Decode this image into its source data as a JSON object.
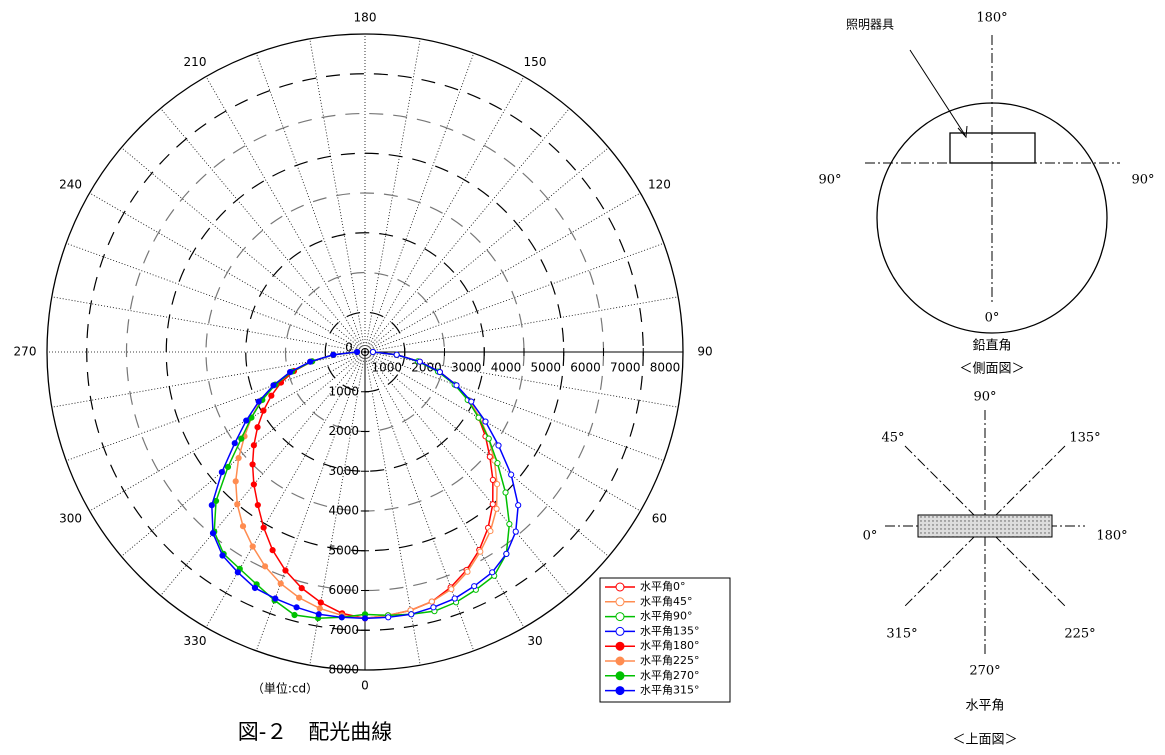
{
  "chart_data": {
    "type": "polar",
    "rlim": [
      0,
      8000
    ],
    "rticks": [
      0,
      1000,
      2000,
      3000,
      4000,
      5000,
      6000,
      7000,
      8000
    ],
    "angle_ticks": [
      0,
      30,
      60,
      90,
      120,
      150,
      180,
      210,
      240,
      270,
      300,
      330
    ],
    "unit_note": "（単位:cd）",
    "caption": "図-２　配光曲線",
    "series": [
      {
        "name": "水平角0°",
        "color": "#ff0000",
        "filled": false,
        "x": [
          0,
          5,
          10,
          15,
          20,
          25,
          30,
          35,
          40,
          45,
          50,
          55,
          60,
          65,
          70,
          75,
          80,
          85,
          90
        ],
        "values": [
          6700,
          6650,
          6600,
          6500,
          6300,
          6050,
          5750,
          5400,
          5000,
          4550,
          4100,
          3700,
          3300,
          2900,
          2450,
          1950,
          1400,
          800,
          200
        ]
      },
      {
        "name": "水平角45°",
        "color": "#ff8c50",
        "filled": false,
        "x": [
          0,
          5,
          10,
          15,
          20,
          25,
          30,
          35,
          40,
          45,
          50,
          55,
          60,
          65,
          70,
          75,
          80,
          85,
          90
        ],
        "values": [
          6700,
          6650,
          6600,
          6500,
          6350,
          6100,
          5800,
          5500,
          5150,
          4700,
          4250,
          3800,
          3350,
          2900,
          2450,
          1950,
          1400,
          800,
          200
        ]
      },
      {
        "name": "水平角90°",
        "color": "#00c000",
        "filled": false,
        "x": [
          0,
          5,
          10,
          15,
          20,
          25,
          30,
          35,
          40,
          45,
          50,
          55,
          60,
          65,
          70,
          75,
          80,
          85,
          90
        ],
        "values": [
          6600,
          6650,
          6700,
          6750,
          6700,
          6600,
          6500,
          6200,
          5650,
          5000,
          4350,
          3800,
          3300,
          2850,
          2400,
          1900,
          1350,
          800,
          200
        ]
      },
      {
        "name": "水平角135°",
        "color": "#0000ff",
        "filled": false,
        "x": [
          0,
          5,
          10,
          15,
          20,
          25,
          30,
          35,
          40,
          45,
          50,
          55,
          60,
          65,
          70,
          75,
          80,
          85,
          90
        ],
        "values": [
          6700,
          6700,
          6700,
          6650,
          6600,
          6500,
          6400,
          6200,
          5900,
          5450,
          4800,
          4100,
          3500,
          2950,
          2450,
          1950,
          1400,
          800,
          200
        ]
      },
      {
        "name": "水平角180°",
        "color": "#ff0000",
        "filled": true,
        "x": [
          360,
          355,
          350,
          345,
          340,
          335,
          330,
          325,
          320,
          315,
          310,
          305,
          300,
          295,
          290,
          285,
          280,
          275,
          270
        ],
        "values": [
          6700,
          6600,
          6400,
          6150,
          5850,
          5500,
          5100,
          4700,
          4350,
          4000,
          3650,
          3300,
          2950,
          2600,
          2250,
          1850,
          1350,
          800,
          200
        ]
      },
      {
        "name": "水平角225°",
        "color": "#ff8c50",
        "filled": true,
        "x": [
          360,
          355,
          350,
          345,
          340,
          335,
          330,
          325,
          320,
          315,
          310,
          305,
          300,
          295,
          290,
          285,
          280,
          275,
          270
        ],
        "values": [
          6700,
          6650,
          6550,
          6400,
          6200,
          5950,
          5650,
          5350,
          5000,
          4600,
          4150,
          3700,
          3300,
          2900,
          2450,
          1950,
          1400,
          800,
          200
        ]
      },
      {
        "name": "水平角270°",
        "color": "#00c000",
        "filled": true,
        "x": [
          360,
          355,
          350,
          345,
          340,
          335,
          330,
          325,
          320,
          315,
          310,
          305,
          300,
          295,
          290,
          285,
          280,
          275,
          270
        ],
        "values": [
          6600,
          6700,
          6800,
          6850,
          6650,
          6450,
          6300,
          6200,
          5900,
          5300,
          4500,
          3800,
          3300,
          2850,
          2400,
          1900,
          1350,
          800,
          200
        ]
      },
      {
        "name": "水平角315°",
        "color": "#0000ff",
        "filled": true,
        "x": [
          360,
          355,
          350,
          345,
          340,
          335,
          330,
          325,
          320,
          315,
          310,
          305,
          300,
          295,
          290,
          285,
          280,
          275,
          270
        ],
        "values": [
          6700,
          6700,
          6700,
          6650,
          6600,
          6550,
          6400,
          6250,
          5950,
          5450,
          4700,
          4000,
          3450,
          2950,
          2450,
          1950,
          1400,
          800,
          200
        ]
      }
    ]
  },
  "side_view": {
    "fixture": "照明器具",
    "top": "180°",
    "left": "90°",
    "right": "90°",
    "bottom": "0°",
    "label": "鉛直角",
    "caption": "＜側面図＞"
  },
  "top_view": {
    "top": "90°",
    "upper_left": "45°",
    "upper_right": "135°",
    "left": "0°",
    "right": "180°",
    "lower_left": "315°",
    "lower_right": "225°",
    "bottom": "270°",
    "label": "水平角",
    "caption": "＜上面図＞"
  }
}
